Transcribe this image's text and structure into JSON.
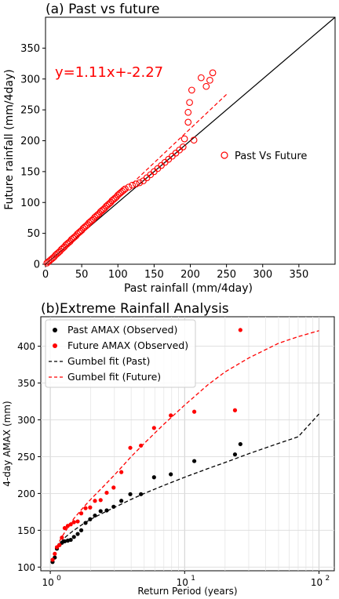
{
  "chart_data": [
    {
      "type": "scatter",
      "title": "(a) Past vs future",
      "xlabel": "Past rainfall (mm/4day)",
      "ylabel": "Future rainfall (mm/4day)",
      "xlim": [
        0,
        400
      ],
      "ylim": [
        0,
        400
      ],
      "xticks": [
        "0",
        "50",
        "100",
        "150",
        "200",
        "250",
        "300",
        "350"
      ],
      "yticks": [
        "0",
        "50",
        "100",
        "150",
        "200",
        "250",
        "300",
        "350"
      ],
      "annotation": "y=1.11x+-2.27",
      "legend_location": "center-right",
      "colors": {
        "points": "#ff0000",
        "reference_line": "#000000",
        "fit_line": "#ff0000"
      },
      "series": [
        {
          "name": "Past Vs Future",
          "marker": "open-circle",
          "x": [
            2,
            4,
            6,
            8,
            10,
            12,
            14,
            16,
            18,
            20,
            22,
            24,
            26,
            28,
            30,
            32,
            34,
            36,
            38,
            40,
            42,
            44,
            46,
            48,
            50,
            52,
            54,
            56,
            58,
            60,
            62,
            64,
            66,
            68,
            70,
            72,
            74,
            76,
            78,
            80,
            82,
            84,
            86,
            88,
            90,
            92,
            94,
            96,
            98,
            100,
            102,
            104,
            106,
            108,
            110,
            115,
            120,
            125,
            130,
            135,
            140,
            145,
            150,
            155,
            160,
            165,
            170,
            175,
            180,
            185,
            190,
            192,
            197,
            197,
            199,
            202,
            205,
            215,
            222,
            227,
            231
          ],
          "y": [
            2,
            4,
            6,
            8,
            10,
            12,
            15,
            17,
            19,
            21,
            24,
            26,
            28,
            31,
            33,
            35,
            37,
            40,
            42,
            44,
            46,
            49,
            51,
            53,
            55,
            58,
            60,
            62,
            64,
            67,
            69,
            71,
            73,
            76,
            78,
            80,
            82,
            85,
            87,
            89,
            91,
            94,
            96,
            98,
            100,
            103,
            105,
            107,
            109,
            112,
            114,
            116,
            118,
            120,
            122,
            125,
            128,
            130,
            132,
            135,
            140,
            145,
            150,
            155,
            160,
            165,
            170,
            175,
            180,
            185,
            190,
            203,
            230,
            246,
            262,
            282,
            201,
            302,
            288,
            298,
            310
          ]
        },
        {
          "name": "",
          "type": "line",
          "style": "solid",
          "x": [
            0,
            400
          ],
          "y": [
            0,
            400
          ]
        },
        {
          "name": "",
          "type": "line",
          "style": "dashed",
          "x": [
            120,
            250
          ],
          "y": [
            131,
            275
          ]
        }
      ]
    },
    {
      "type": "scatter",
      "title": "(b)Extreme Rainfall Analysis",
      "xlabel": "Return Period (years)",
      "ylabel": "4-day AMAX (mm)",
      "xscale": "log",
      "xlim": [
        0.85,
        130
      ],
      "ylim": [
        95,
        440
      ],
      "xticks": [
        "10",
        "10",
        "10"
      ],
      "xtick_exponents": [
        "0",
        "1",
        "2"
      ],
      "yticks": [
        "100",
        "150",
        "200",
        "250",
        "300",
        "350",
        "400"
      ],
      "grid": true,
      "legend_location": "top-left",
      "colors": {
        "past": "#000000",
        "future": "#ff0000"
      },
      "series": [
        {
          "name": "Past AMAX (Observed)",
          "marker": "filled-circle",
          "x": [
            1.04,
            1.08,
            1.12,
            1.17,
            1.22,
            1.28,
            1.35,
            1.42,
            1.5,
            1.6,
            1.7,
            1.83,
            1.98,
            2.15,
            2.37,
            2.63,
            2.96,
            3.38,
            3.94,
            4.73,
            5.92,
            7.89,
            11.8,
            23.7
          ],
          "y": [
            107,
            113,
            125,
            130,
            133,
            135,
            136,
            137,
            141,
            145,
            150,
            160,
            165,
            170,
            176,
            177,
            182,
            190,
            199,
            199,
            222,
            226,
            244,
            253
          ]
        },
        {
          "name": "Future AMAX (Observed)",
          "marker": "filled-circle",
          "x": [
            1.04,
            1.08,
            1.12,
            1.17,
            1.22,
            1.28,
            1.35,
            1.42,
            1.5,
            1.6,
            1.7,
            1.83,
            1.98,
            2.15,
            2.37,
            2.63,
            2.96,
            3.38,
            3.94,
            4.73,
            5.92,
            7.89,
            11.8,
            23.7
          ],
          "y": [
            110,
            118,
            127,
            130,
            140,
            153,
            156,
            158,
            161,
            162,
            173,
            180,
            181,
            190,
            191,
            201,
            208,
            229,
            262,
            265,
            289,
            306,
            311,
            313
          ]
        },
        {
          "name": "",
          "marker": "filled-circle",
          "x": [
            26,
            26
          ],
          "y": [
            267,
            422
          ],
          "colors": [
            "#000000",
            "#ff0000"
          ]
        },
        {
          "name": "Gumbel fit (Past)",
          "type": "line",
          "style": "dashed",
          "x": [
            1.12,
            1.2,
            1.3,
            1.5,
            1.8,
            2,
            2.5,
            3,
            4,
            5,
            7,
            10,
            15,
            20,
            30,
            50,
            70,
            100
          ],
          "y": [
            127,
            134,
            141,
            150,
            160,
            165,
            174,
            181,
            192,
            200,
            211,
            222,
            234,
            242,
            254,
            268,
            277,
            308
          ]
        },
        {
          "name": "Gumbel fit (Future)",
          "type": "line",
          "style": "dashed",
          "x": [
            1.12,
            1.2,
            1.3,
            1.5,
            1.8,
            2,
            2.5,
            3,
            4,
            5,
            7,
            10,
            15,
            20,
            30,
            50,
            70,
            100
          ],
          "y": [
            127,
            139,
            149,
            166,
            183,
            192,
            210,
            225,
            250,
            268,
            294,
            320,
            348,
            365,
            384,
            404,
            413,
            421
          ]
        }
      ]
    }
  ]
}
